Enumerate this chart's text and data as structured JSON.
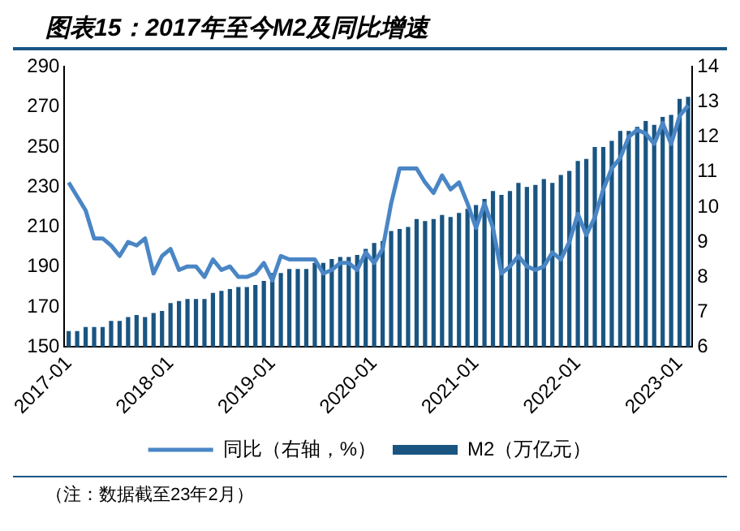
{
  "chart_data": {
    "type": "bar",
    "title": "图表15：2017年至今M2及同比增速",
    "categories": [
      "2017-01",
      null,
      null,
      null,
      null,
      null,
      null,
      null,
      null,
      null,
      null,
      null,
      "2018-01",
      null,
      null,
      null,
      null,
      null,
      null,
      null,
      null,
      null,
      null,
      null,
      "2019-01",
      null,
      null,
      null,
      null,
      null,
      null,
      null,
      null,
      null,
      null,
      null,
      "2020-01",
      null,
      null,
      null,
      null,
      null,
      null,
      null,
      null,
      null,
      null,
      null,
      "2021-01",
      null,
      null,
      null,
      null,
      null,
      null,
      null,
      null,
      null,
      null,
      null,
      "2022-01",
      null,
      null,
      null,
      null,
      null,
      null,
      null,
      null,
      null,
      null,
      null,
      "2023-01",
      null
    ],
    "series": [
      {
        "name": "M2（万亿元）",
        "color": "#1a5582",
        "values": [
          158,
          158,
          160,
          160,
          160,
          163,
          163,
          165,
          166,
          165,
          167,
          168,
          172,
          173,
          174,
          174,
          174,
          177,
          178,
          179,
          180,
          180,
          181,
          183,
          187,
          187,
          189,
          189,
          189,
          192,
          192,
          194,
          195,
          195,
          196,
          199,
          202,
          203,
          208,
          209,
          210,
          214,
          213,
          214,
          216,
          215,
          217,
          219,
          221,
          224,
          228,
          226,
          228,
          232,
          230,
          231,
          234,
          232,
          236,
          238,
          243,
          244,
          250,
          250,
          253,
          258,
          258,
          260,
          263,
          261,
          265,
          266,
          274,
          275
        ]
      },
      {
        "name": "同比（右轴，%）",
        "type": "line",
        "axis": "y2",
        "color": "#4a86c5",
        "values": [
          10.7,
          10.3,
          9.9,
          9.1,
          9.1,
          8.9,
          8.6,
          9.0,
          8.9,
          9.1,
          8.1,
          8.6,
          8.8,
          8.2,
          8.3,
          8.3,
          8.0,
          8.5,
          8.2,
          8.3,
          8.0,
          8.0,
          8.1,
          8.4,
          7.9,
          8.6,
          8.5,
          8.5,
          8.5,
          8.5,
          8.1,
          8.2,
          8.4,
          8.4,
          8.2,
          8.7,
          8.4,
          8.8,
          10.1,
          11.1,
          11.1,
          11.1,
          10.7,
          10.4,
          10.9,
          10.5,
          10.7,
          10.1,
          9.4,
          10.1,
          9.4,
          8.1,
          8.3,
          8.6,
          8.3,
          8.2,
          8.3,
          8.7,
          8.5,
          9.0,
          9.8,
          9.2,
          9.7,
          10.5,
          11.1,
          11.4,
          12.0,
          12.2,
          12.1,
          11.8,
          12.4,
          11.8,
          12.6,
          12.9
        ]
      }
    ],
    "ylim": [
      150,
      290
    ],
    "yticks": [
      150,
      170,
      190,
      210,
      230,
      250,
      270,
      290
    ],
    "y2lim": [
      6,
      14
    ],
    "y2ticks": [
      6,
      7,
      8,
      9,
      10,
      11,
      12,
      13,
      14
    ],
    "grid": false,
    "legend": "bottom",
    "marker": "none",
    "line_style": "solid",
    "annotations": [
      "（注：数据截至23年2月）"
    ]
  }
}
